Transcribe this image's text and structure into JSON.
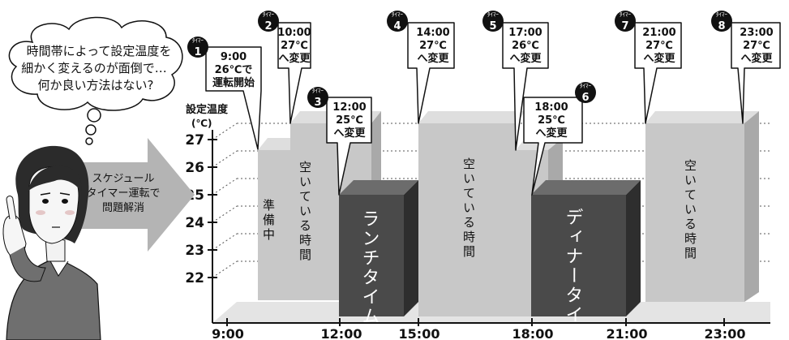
{
  "thought_bubble": {
    "lines": [
      "時間帯によって設定温度を",
      "細かく変えるのが面倒で…",
      "何か良い方法はない?"
    ]
  },
  "arrow_label": {
    "lines": [
      "スケジュール",
      "タイマー運転で",
      "問題解消"
    ]
  },
  "y_axis": {
    "title": "設定温度",
    "unit": "(℃)",
    "ticks": [
      "27",
      "26",
      "25",
      "24",
      "23",
      "22"
    ]
  },
  "x_axis": {
    "ticks": [
      "9:00",
      "12:00",
      "15:00",
      "18:00",
      "21:00",
      "23:00"
    ]
  },
  "timer_badge_label": "ﾀｲﾏｰ",
  "timers": [
    {
      "num": "1",
      "lines": [
        "9:00",
        "26℃で",
        "運転開始"
      ]
    },
    {
      "num": "2",
      "lines": [
        "10:00",
        "27℃",
        "へ変更"
      ]
    },
    {
      "num": "3",
      "lines": [
        "12:00",
        "25℃",
        "へ変更"
      ]
    },
    {
      "num": "4",
      "lines": [
        "14:00",
        "27℃",
        "へ変更"
      ]
    },
    {
      "num": "5",
      "lines": [
        "17:00",
        "26℃",
        "へ変更"
      ]
    },
    {
      "num": "6",
      "lines": [
        "18:00",
        "25℃",
        "へ変更"
      ]
    },
    {
      "num": "7",
      "lines": [
        "21:00",
        "27℃",
        "へ変更"
      ]
    },
    {
      "num": "8",
      "lines": [
        "23:00",
        "27℃",
        "へ変更"
      ]
    }
  ],
  "blocks": {
    "junbi": "準備中",
    "aki1": "空いている時間",
    "lunch": "ランチタイム",
    "aki2": "空いている時間",
    "dinner": "ディナータイム",
    "aki3": "空いている時間"
  },
  "colors": {
    "light_block": "#c8c8c8",
    "light_side": "#a9a9a9",
    "light_top": "#dedede",
    "dark_block": "#4a4a4a",
    "dark_side": "#2e2e2e",
    "dark_top": "#6c6c6c",
    "floor": "#e4e4e4",
    "badge": "#111111"
  }
}
